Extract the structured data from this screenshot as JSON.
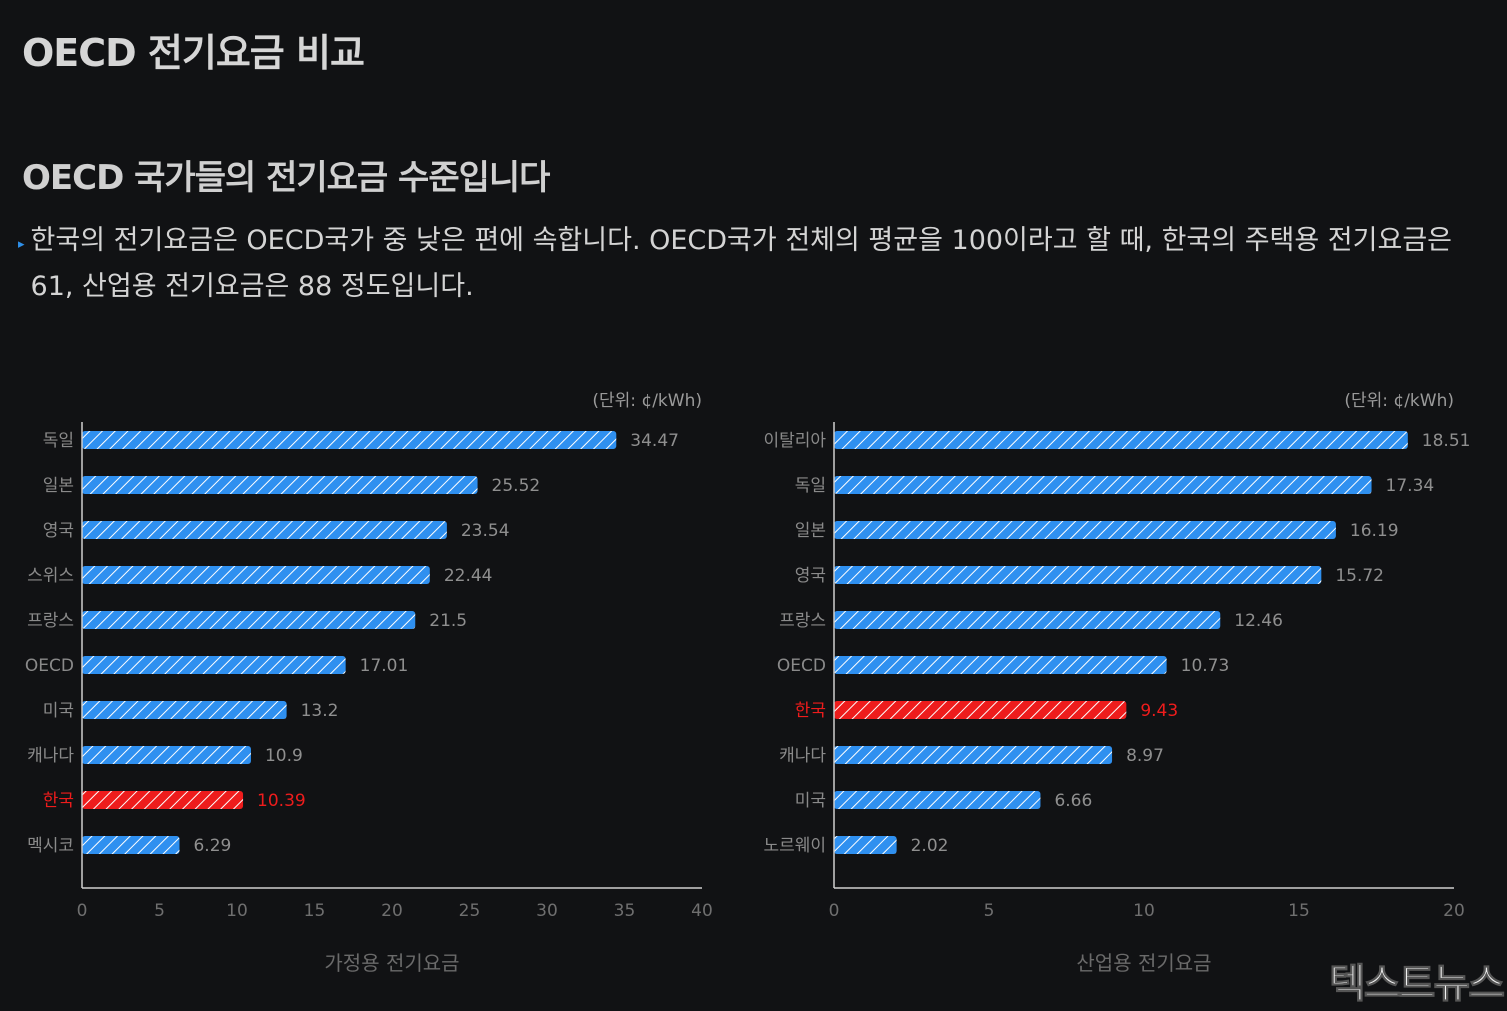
{
  "header": {
    "title": "OECD 전기요금 비교",
    "subtitle": "OECD 국가들의 전기요금 수준입니다",
    "description": "한국의 전기요금은 OECD국가 중 낮은 편에 속합니다. OECD국가 전체의 평균을 100이라고 할 때, 한국의 주택용 전기요금은 61, 산업용 전기요금은 88 정도입니다."
  },
  "watermark": "텍스트뉴스",
  "colors": {
    "bar": "#2f90f0",
    "highlight": "#ee1c1c",
    "stripe": "#ffffff",
    "background": "#111214"
  },
  "chart_data": [
    {
      "type": "bar",
      "orientation": "horizontal",
      "title": "",
      "xlabel": "가정용 전기요금",
      "unit": "(단위: ¢/kWh)",
      "categories": [
        "독일",
        "일본",
        "영국",
        "스위스",
        "프랑스",
        "OECD",
        "미국",
        "캐나다",
        "한국",
        "멕시코"
      ],
      "values": [
        34.47,
        25.52,
        23.54,
        22.44,
        21.5,
        17.01,
        13.2,
        10.9,
        10.39,
        6.29
      ],
      "value_labels": [
        "34.47",
        "25.52",
        "23.54",
        "22.44",
        "21.5",
        "17.01",
        "13.2",
        "10.9",
        "10.39",
        "6.29"
      ],
      "highlight": "한국",
      "xlim": [
        0,
        40
      ],
      "xticks": [
        0,
        5,
        10,
        15,
        20,
        25,
        30,
        35,
        40
      ],
      "grid": false
    },
    {
      "type": "bar",
      "orientation": "horizontal",
      "title": "",
      "xlabel": "산업용 전기요금",
      "unit": "(단위: ¢/kWh)",
      "categories": [
        "이탈리아",
        "독일",
        "일본",
        "영국",
        "프랑스",
        "OECD",
        "한국",
        "캐나다",
        "미국",
        "노르웨이"
      ],
      "values": [
        18.51,
        17.34,
        16.19,
        15.72,
        12.46,
        10.73,
        9.43,
        8.97,
        6.66,
        2.02
      ],
      "value_labels": [
        "18.51",
        "17.34",
        "16.19",
        "15.72",
        "12.46",
        "10.73",
        "9.43",
        "8.97",
        "6.66",
        "2.02"
      ],
      "highlight": "한국",
      "xlim": [
        0,
        20
      ],
      "xticks": [
        0,
        5,
        10,
        15,
        20
      ],
      "grid": false
    }
  ]
}
